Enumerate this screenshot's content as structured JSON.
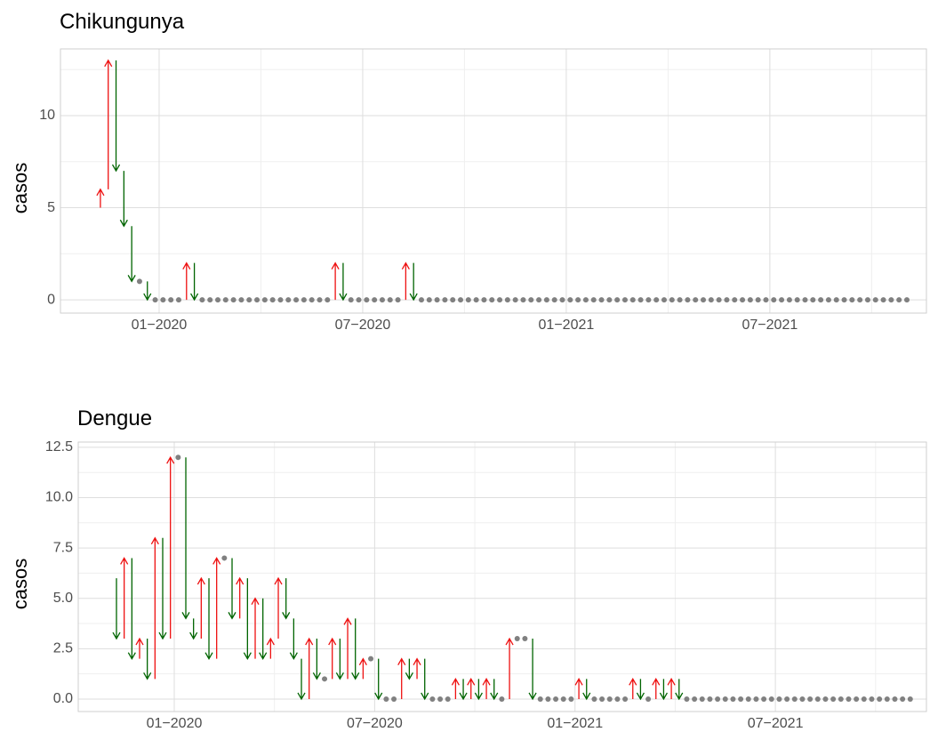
{
  "chart_data": [
    {
      "type": "arrow",
      "title": "Chikungunya",
      "y_label": "casos",
      "up_color": "#ee1111",
      "down_color": "#006400",
      "same_color": "#808080",
      "start_value": 5,
      "x": [
        1,
        2,
        3,
        4,
        5,
        6,
        7,
        8,
        9,
        10,
        11,
        12,
        13,
        14,
        15,
        16,
        17,
        18,
        19,
        20,
        21,
        22,
        23,
        24,
        25,
        26,
        27,
        28,
        29,
        30,
        31,
        32,
        33,
        34,
        35,
        36,
        37,
        38,
        39,
        40,
        41,
        42,
        43,
        44,
        45,
        46,
        47,
        48,
        49,
        50,
        51,
        52,
        53,
        54,
        55,
        56,
        57,
        58,
        59,
        60,
        61,
        62,
        63,
        64,
        65,
        66,
        67,
        68,
        69,
        70,
        71,
        72,
        73,
        74,
        75,
        76,
        77,
        78,
        79,
        80,
        81,
        82,
        83,
        84,
        85,
        86,
        87,
        88,
        89,
        90,
        91,
        92,
        93,
        94,
        95,
        96,
        97,
        98,
        99,
        100,
        101,
        102,
        103,
        104
      ],
      "values": [
        6,
        13,
        7,
        4,
        1,
        1,
        0,
        0,
        0,
        0,
        0,
        2,
        0,
        0,
        0,
        0,
        0,
        0,
        0,
        0,
        0,
        0,
        0,
        0,
        0,
        0,
        0,
        0,
        0,
        0,
        2,
        0,
        0,
        0,
        0,
        0,
        0,
        0,
        0,
        2,
        0,
        0,
        0,
        0,
        0,
        0,
        0,
        0,
        0,
        0,
        0,
        0,
        0,
        0,
        0,
        0,
        0,
        0,
        0,
        0,
        0,
        0,
        0,
        0,
        0,
        0,
        0,
        0,
        0,
        0,
        0,
        0,
        0,
        0,
        0,
        0,
        0,
        0,
        0,
        0,
        0,
        0,
        0,
        0,
        0,
        0,
        0,
        0,
        0,
        0,
        0,
        0,
        0,
        0,
        0,
        0,
        0,
        0,
        0,
        0,
        0,
        0,
        0,
        0
      ],
      "xlim": [
        -4.1,
        106.5
      ],
      "xticks": [
        {
          "value": 8.5,
          "label": "01−2020"
        },
        {
          "value": 34.5,
          "label": "07−2020"
        },
        {
          "value": 60.5,
          "label": "01−2021"
        },
        {
          "value": 86.5,
          "label": "07−2021"
        }
      ],
      "ylim": [
        -0.72,
        13.62
      ],
      "yticks": [
        0,
        5,
        10
      ],
      "grid": true
    },
    {
      "type": "arrow",
      "title": "Dengue",
      "y_label": "casos",
      "up_color": "#ee1111",
      "down_color": "#006400",
      "same_color": "#808080",
      "start_value": 6,
      "x": [
        1,
        2,
        3,
        4,
        5,
        6,
        7,
        8,
        9,
        10,
        11,
        12,
        13,
        14,
        15,
        16,
        17,
        18,
        19,
        20,
        21,
        22,
        23,
        24,
        25,
        26,
        27,
        28,
        29,
        30,
        31,
        32,
        33,
        34,
        35,
        36,
        37,
        38,
        39,
        40,
        41,
        42,
        43,
        44,
        45,
        46,
        47,
        48,
        49,
        50,
        51,
        52,
        53,
        54,
        55,
        56,
        57,
        58,
        59,
        60,
        61,
        62,
        63,
        64,
        65,
        66,
        67,
        68,
        69,
        70,
        71,
        72,
        73,
        74,
        75,
        76,
        77,
        78,
        79,
        80,
        81,
        82,
        83,
        84,
        85,
        86,
        87,
        88,
        89,
        90,
        91,
        92,
        93,
        94,
        95,
        96,
        97,
        98,
        99,
        100,
        101,
        102,
        103,
        104
      ],
      "values": [
        3,
        7,
        2,
        3,
        1,
        8,
        3,
        12,
        12,
        4,
        3,
        6,
        2,
        7,
        7,
        4,
        6,
        2,
        5,
        2,
        3,
        6,
        4,
        2,
        0,
        3,
        1,
        1,
        3,
        1,
        4,
        1,
        2,
        2,
        0,
        0,
        0,
        2,
        1,
        2,
        0,
        0,
        0,
        0,
        1,
        0,
        1,
        0,
        1,
        0,
        0,
        3,
        3,
        3,
        0,
        0,
        0,
        0,
        0,
        0,
        1,
        0,
        0,
        0,
        0,
        0,
        0,
        1,
        0,
        0,
        1,
        0,
        1,
        0,
        0,
        0,
        0,
        0,
        0,
        0,
        0,
        0,
        0,
        0,
        0,
        0,
        0,
        0,
        0,
        0,
        0,
        0,
        0,
        0,
        0,
        0,
        0,
        0,
        0,
        0,
        0,
        0,
        0,
        0
      ],
      "xlim": [
        -3.96,
        106.1
      ],
      "xticks": [
        {
          "value": 8.5,
          "label": "01−2020"
        },
        {
          "value": 34.5,
          "label": "07−2020"
        },
        {
          "value": 60.5,
          "label": "01−2021"
        },
        {
          "value": 86.5,
          "label": "07−2021"
        }
      ],
      "ylim": [
        -0.62,
        12.76
      ],
      "yticks": [
        {
          "value": 0,
          "label": "0.0"
        },
        2.5,
        {
          "value": 5,
          "label": "5.0"
        },
        7.5,
        {
          "value": 10,
          "label": "10.0"
        },
        12.5
      ],
      "grid": true
    }
  ]
}
